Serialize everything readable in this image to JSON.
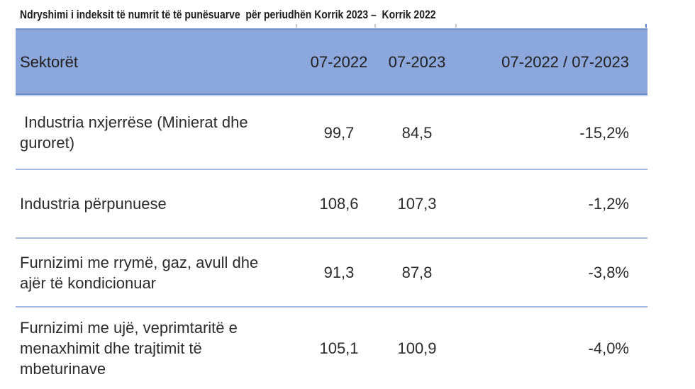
{
  "title": "Ndryshimi i indeksit të numrit të të punësuarve  për periudhën Korrik 2023 –  Korrik 2022",
  "table": {
    "columns": [
      "Sektorët",
      "07-2022",
      "07-2023",
      "07-2022 / 07-2023"
    ],
    "rows": [
      {
        "sector": "Industria nxjerrëse (Minierat dhe guroret)",
        "sector_lines": [
          " Industria nxjerrëse (Minierat dhe",
          "guroret)"
        ],
        "v2022": "99,7",
        "v2023": "84,5",
        "change": "-15,2%"
      },
      {
        "sector": "Industria përpunuese",
        "sector_lines": [
          "Industria përpunuese"
        ],
        "v2022": "108,6",
        "v2023": "107,3",
        "change": "-1,2%"
      },
      {
        "sector": "Furnizimi me rrymë, gaz, avull dhe ajër të kondicionuar",
        "sector_lines": [
          "Furnizimi me rrymë, gaz, avull dhe",
          "ajër të kondicionuar"
        ],
        "v2022": "91,3",
        "v2023": "87,8",
        "change": "-3,8%"
      },
      {
        "sector": "Furnizimi me ujë, veprimtaritë e menaxhimit dhe trajtimit të mbeturinave",
        "sector_lines": [
          "Furnizimi me ujë, veprimtaritë e",
          "menaxhimit dhe trajtimit të",
          "mbeturinave"
        ],
        "v2022": "105,1",
        "v2023": "100,9",
        "change": "-4,0%"
      }
    ]
  },
  "colors": {
    "header_bg": "#8CA7DB",
    "header_top_border": "#7191CC",
    "header_bottom_border": "#5F86C9",
    "row_separator": "#9FB9E2",
    "text": "#2B2B2B"
  }
}
